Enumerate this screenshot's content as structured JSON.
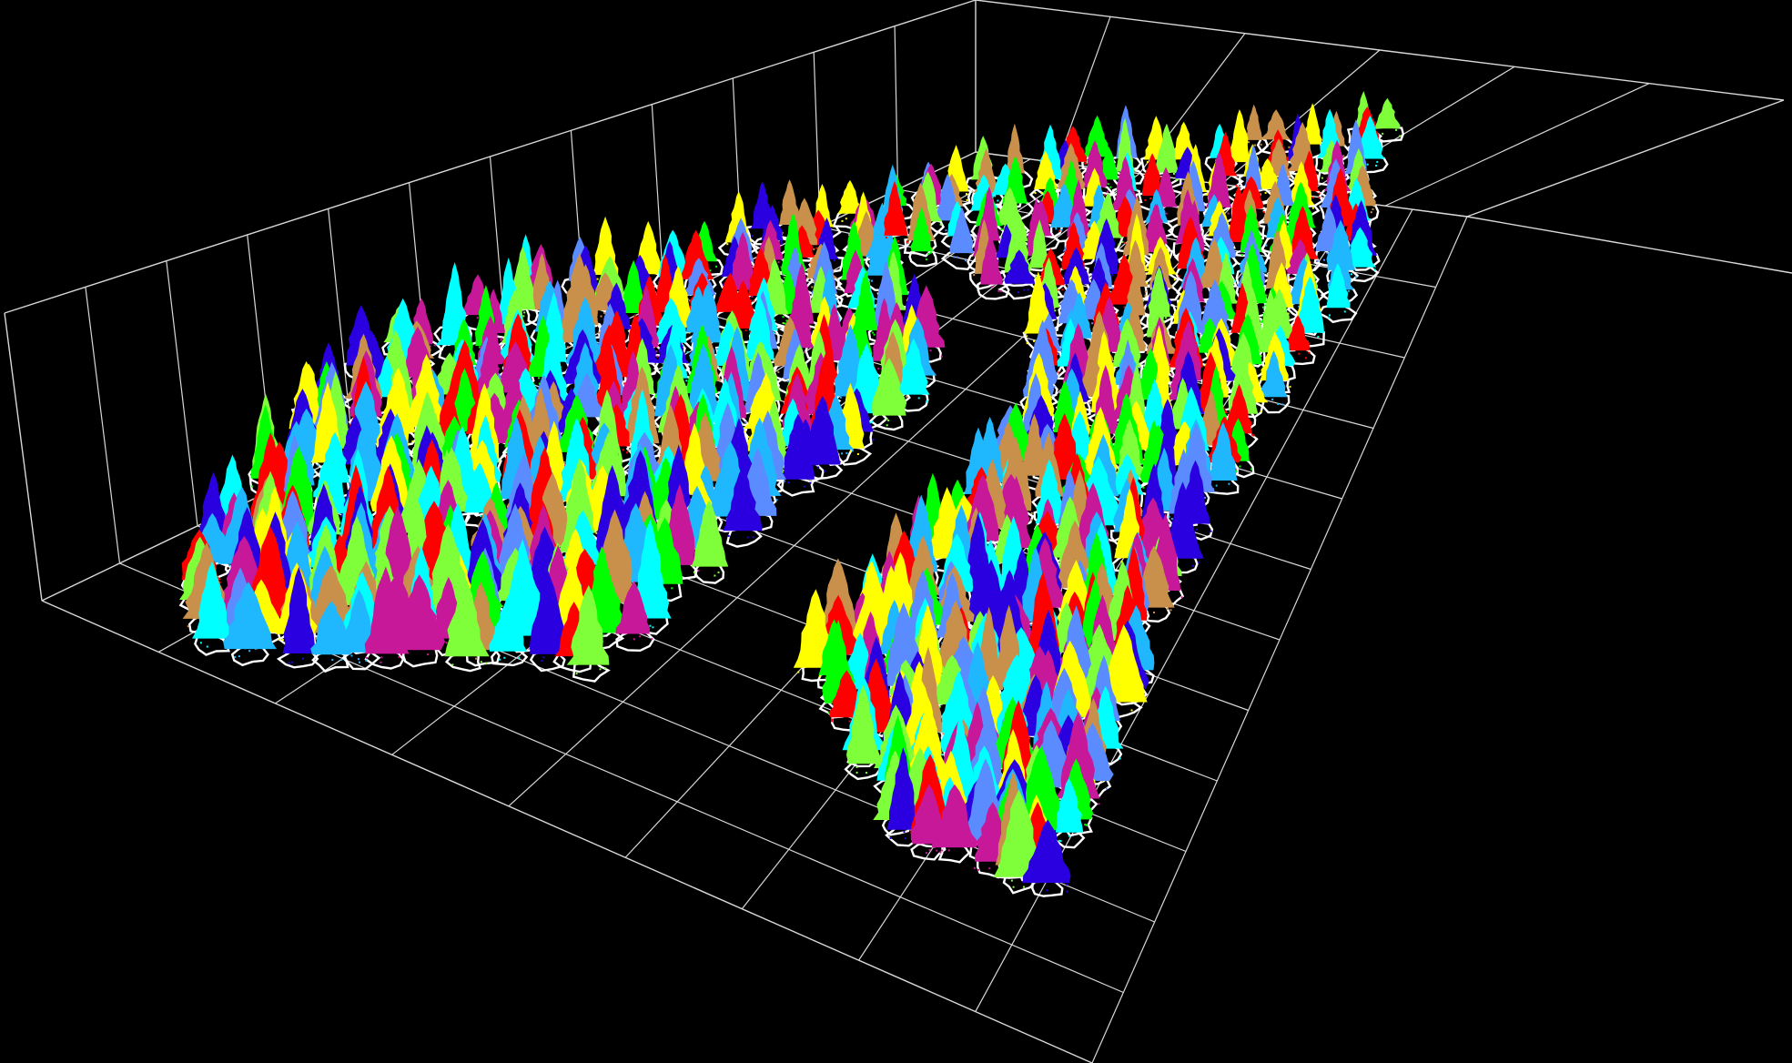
{
  "scene": {
    "kind": "3d-point-cloud-viewer",
    "background_color": "#000000",
    "grid_color": "#d8d8d8",
    "outline_color": "#ffffff",
    "plots": [
      {
        "name": "left-plot"
      },
      {
        "name": "right-plot"
      }
    ],
    "segment_palette": [
      "#ff0000",
      "#ffff00",
      "#00ff00",
      "#7fff3a",
      "#00ffff",
      "#1fb8ff",
      "#5b8cff",
      "#2a00e0",
      "#c8189a",
      "#c8904a"
    ]
  }
}
